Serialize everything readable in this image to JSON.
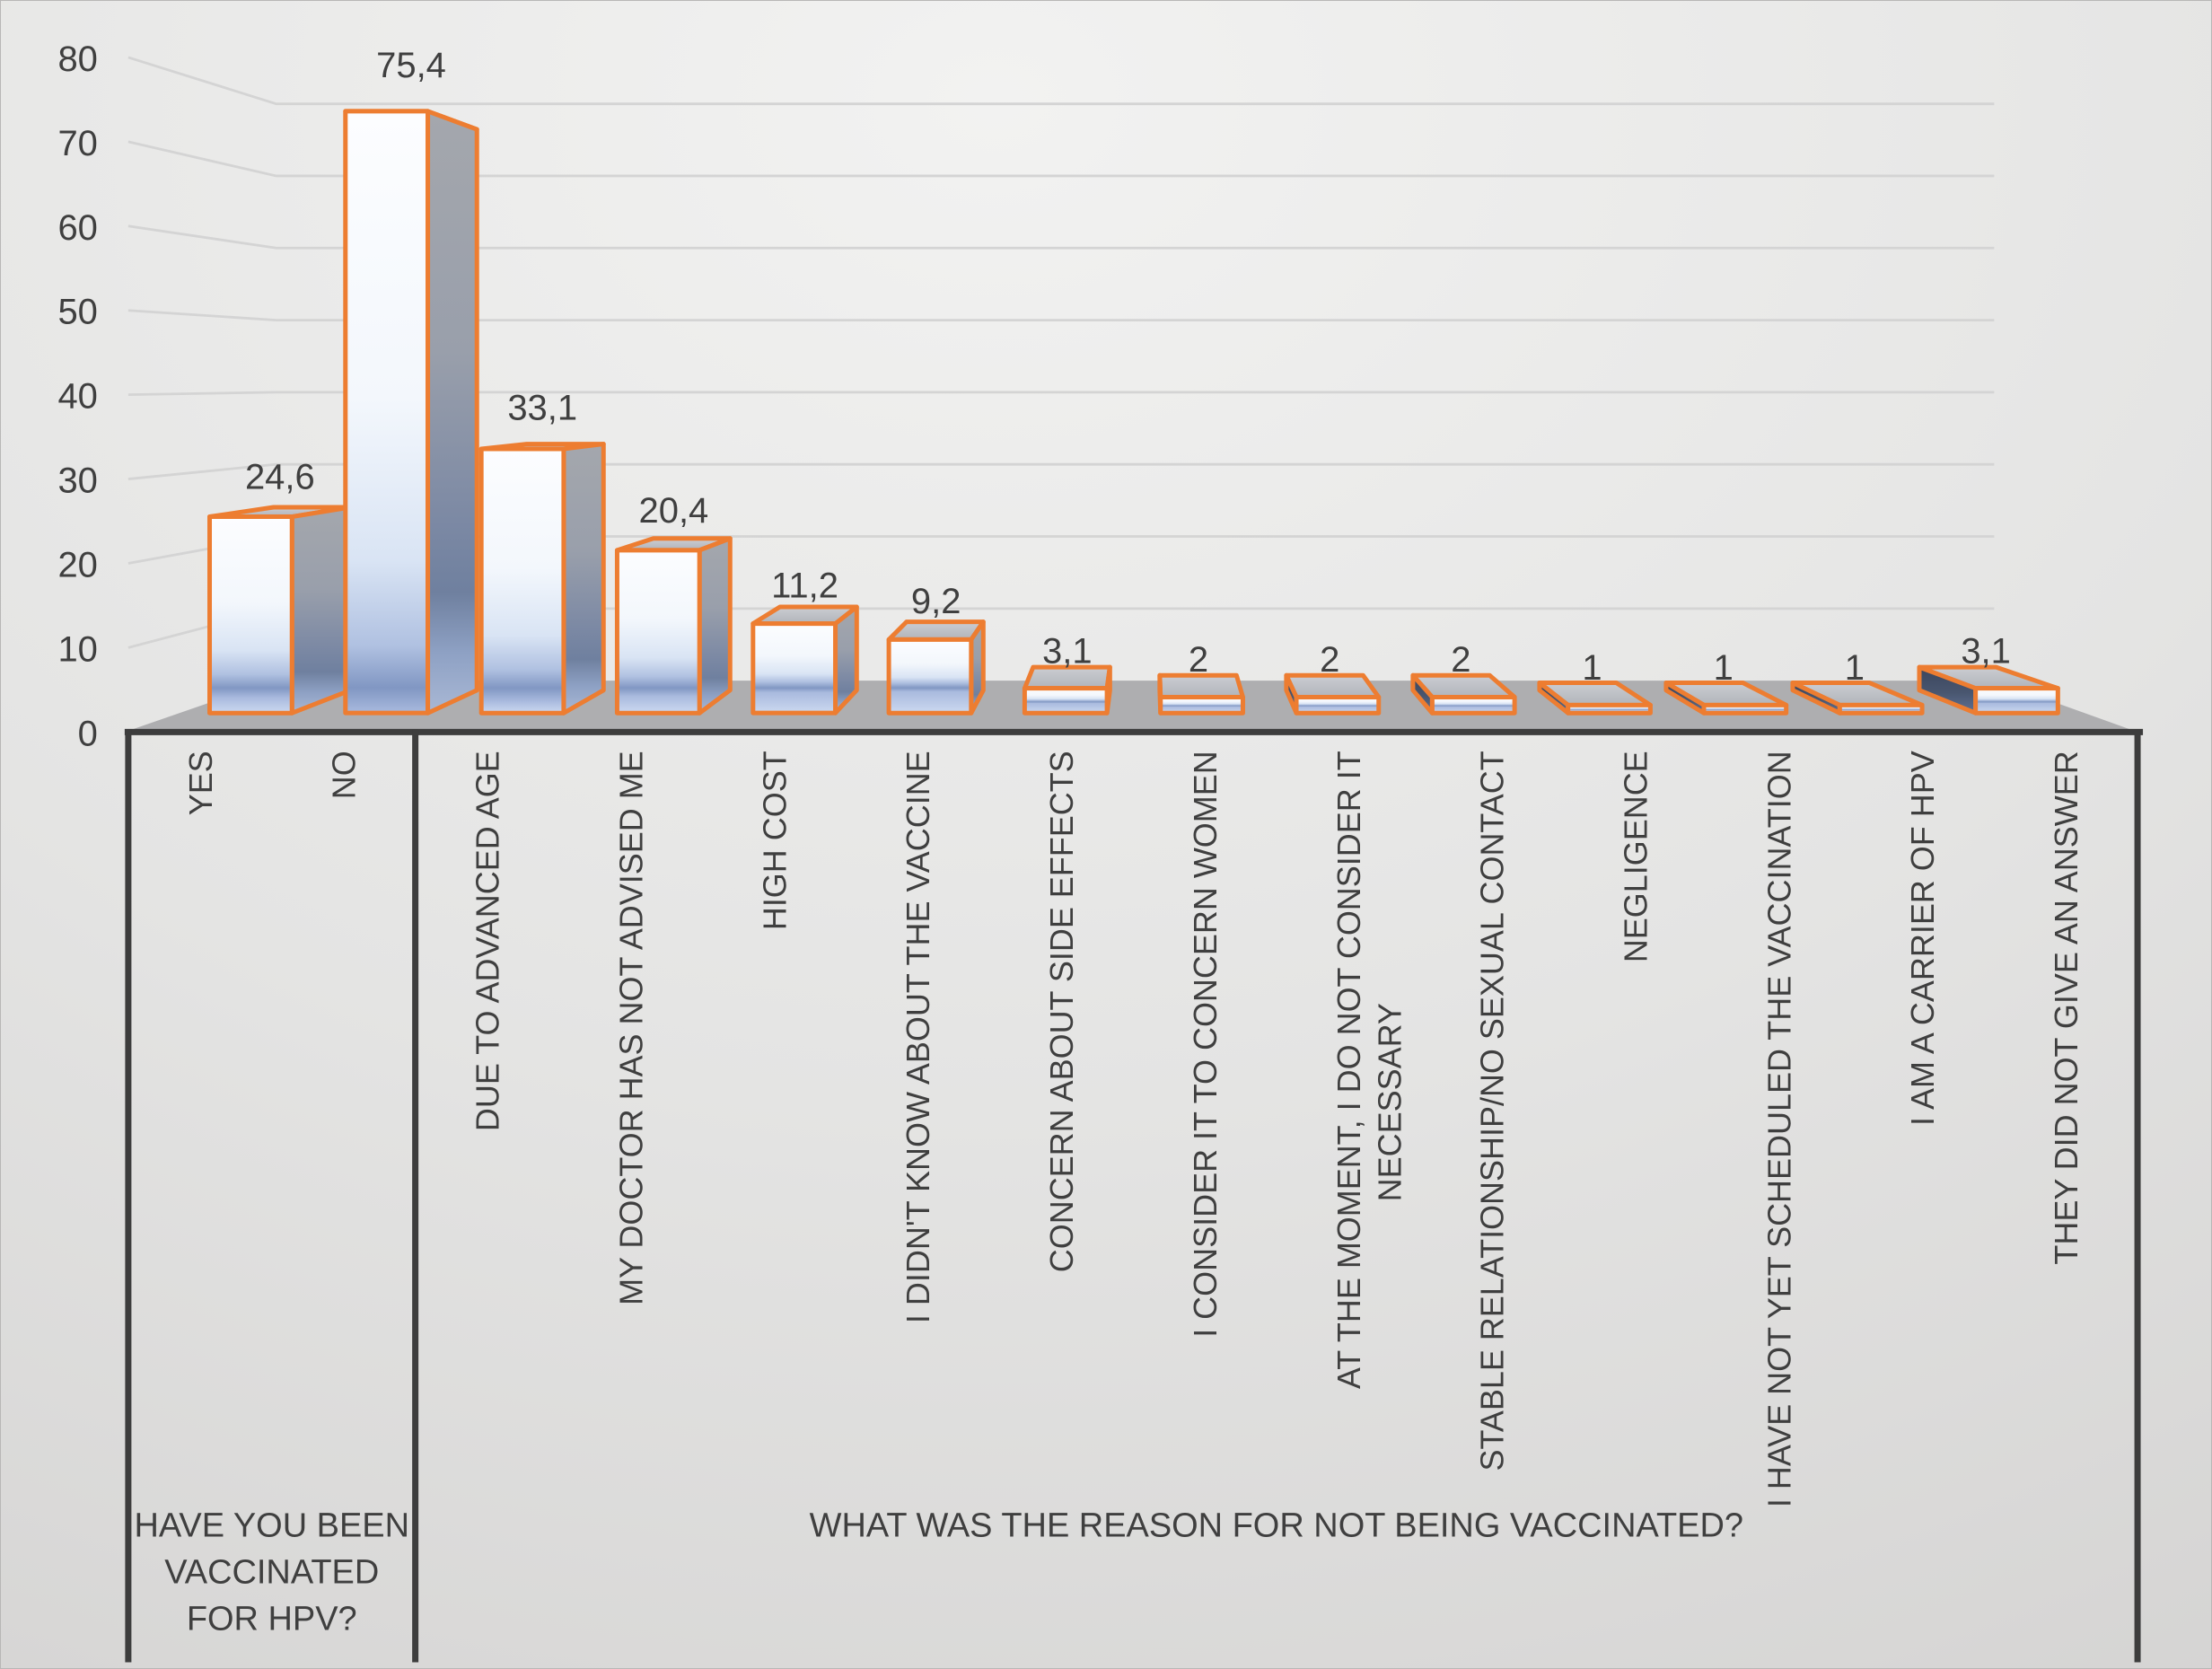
{
  "chart_data": {
    "type": "bar",
    "style": "excel-3d-column",
    "title": "",
    "y_axis": {
      "min": 0,
      "max": 80,
      "step": 10,
      "tick_labels": [
        "0",
        "10",
        "20",
        "30",
        "40",
        "50",
        "60",
        "70",
        "80"
      ]
    },
    "grid": "horizontal-back-wall",
    "legend": "none",
    "decimal_separator": ",",
    "groups": [
      {
        "label": "HAVE YOU BEEN VACCINATED FOR HPV?",
        "label_lines": [
          "HAVE YOU BEEN",
          "VACCINATED",
          "FOR HPV?"
        ],
        "categories": [
          {
            "label": "YES",
            "label_lines": [
              "YES"
            ],
            "value": 24.6,
            "value_display": "24,6"
          },
          {
            "label": "NO",
            "label_lines": [
              "NO"
            ],
            "value": 75.4,
            "value_display": "75,4"
          }
        ]
      },
      {
        "label": "WHAT WAS THE REASON FOR NOT BEING VACCINATED?",
        "label_lines": [
          "WHAT WAS THE REASON FOR NOT BEING VACCINATED?"
        ],
        "categories": [
          {
            "label": "DUE TO ADVANCED AGE",
            "label_lines": [
              "DUE TO ADVANCED AGE"
            ],
            "value": 33.1,
            "value_display": "33,1"
          },
          {
            "label": "MY DOCTOR HAS NOT ADVISED ME",
            "label_lines": [
              "MY DOCTOR HAS NOT ADVISED ME"
            ],
            "value": 20.4,
            "value_display": "20,4"
          },
          {
            "label": "HIGH COST",
            "label_lines": [
              "HIGH COST"
            ],
            "value": 11.2,
            "value_display": "11,2"
          },
          {
            "label": "I DIDN'T KNOW ABOUT THE VACCINE",
            "label_lines": [
              "I DIDN'T KNOW ABOUT THE VACCINE"
            ],
            "value": 9.2,
            "value_display": "9,2"
          },
          {
            "label": "CONCERN ABOUT SIDE EFFECTS",
            "label_lines": [
              "CONCERN ABOUT SIDE EFFECTS"
            ],
            "value": 3.1,
            "value_display": "3,1"
          },
          {
            "label": "I CONSIDER IT TO CONCERN WOMEN",
            "label_lines": [
              "I CONSIDER IT TO CONCERN WOMEN"
            ],
            "value": 2,
            "value_display": "2"
          },
          {
            "label": "AT THE MOMENT, I DO NOT CONSIDER IT NECESSARY",
            "label_lines": [
              "AT THE MOMENT, I DO NOT CONSIDER IT",
              "NECESSARY"
            ],
            "value": 2,
            "value_display": "2"
          },
          {
            "label": "STABLE RELATIONSHIP/NO SEXUAL CONTACT",
            "label_lines": [
              "STABLE RELATIONSHIP/NO SEXUAL CONTACT"
            ],
            "value": 2,
            "value_display": "2"
          },
          {
            "label": "NEGLIGENCE",
            "label_lines": [
              "NEGLIGENCE"
            ],
            "value": 1,
            "value_display": "1"
          },
          {
            "label": "I HAVE NOT YET SCHEDULED THE VACCINATION",
            "label_lines": [
              "I HAVE NOT YET SCHEDULED THE VACCINATION"
            ],
            "value": 1,
            "value_display": "1"
          },
          {
            "label": "I AM A CARRIER OF HPV",
            "label_lines": [
              "I AM A CARRIER OF HPV"
            ],
            "value": 1,
            "value_display": "1"
          },
          {
            "label": "THEY DID NOT GIVE AN ANSWER",
            "label_lines": [
              "THEY DID NOT GIVE AN ANSWER"
            ],
            "value": 3.1,
            "value_display": "3,1"
          }
        ]
      }
    ],
    "colors": {
      "bar_outline": "#ed7d31",
      "label_text": "#3f3f3f",
      "axis_line": "#3d3d3d",
      "gridline": "#d4d4d4",
      "floor": "#aeaeb0",
      "background_light": "#f2f2f1",
      "background_dark": "#d5d4d3"
    }
  }
}
